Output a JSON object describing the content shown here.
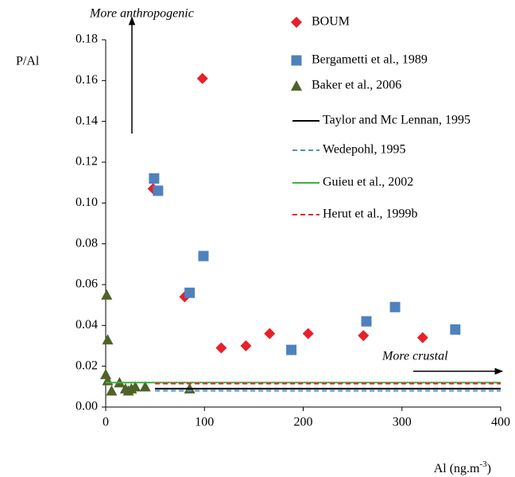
{
  "chart_data": {
    "type": "scatter",
    "y_label": "P/Al",
    "x_label": "Al (ng.m",
    "x_label_sup": "-3",
    "x_label_end": ")",
    "annotations": [
      "More anthropogenic",
      "More crustal"
    ],
    "xlim": [
      0,
      400
    ],
    "xticks": [
      0,
      100,
      200,
      300,
      400
    ],
    "ylim": [
      0,
      0.18
    ],
    "yticks": [
      {
        "value": 0,
        "label": "0.00"
      },
      {
        "value": 0.02,
        "label": "0.02"
      },
      {
        "value": 0.04,
        "label": "0.04"
      },
      {
        "value": 0.06,
        "label": "0.06"
      },
      {
        "value": 0.08,
        "label": "0.08"
      },
      {
        "value": 0.1,
        "label": "0.10"
      },
      {
        "value": 0.12,
        "label": "0.12"
      },
      {
        "value": 0.14,
        "label": "0.14"
      },
      {
        "value": 0.16,
        "label": "0.16"
      },
      {
        "value": 0.18,
        "label": "0.18"
      }
    ],
    "grid": false,
    "series": [
      {
        "name": "BOUM",
        "color": "#e8202a",
        "marker": "diamond",
        "x": [
          48,
          80,
          98,
          117,
          142,
          166,
          205,
          261,
          321
        ],
        "values": [
          0.107,
          0.054,
          0.161,
          0.029,
          0.03,
          0.036,
          0.036,
          0.035,
          0.034
        ]
      },
      {
        "name": "Bergametti et al., 1989",
        "color": "#4f81bd",
        "marker": "square",
        "x": [
          49,
          53,
          85,
          99,
          188,
          264,
          293,
          354
        ],
        "values": [
          0.112,
          0.106,
          0.056,
          0.074,
          0.028,
          0.042,
          0.049,
          0.038
        ]
      },
      {
        "name": "Baker et al., 2006",
        "color": "#4f6228",
        "marker": "triangle",
        "x": [
          1,
          2,
          0,
          2,
          6,
          14,
          20,
          23,
          26,
          30,
          40,
          85
        ],
        "values": [
          0.055,
          0.033,
          0.016,
          0.013,
          0.008,
          0.012,
          0.009,
          0.008,
          0.009,
          0.01,
          0.01,
          0.009
        ]
      },
      {
        "name": "Taylor and Mc Lennan, 1995",
        "color": "#000000",
        "line": "solid",
        "x": [
          50,
          400
        ],
        "values": [
          0.009,
          0.009
        ]
      },
      {
        "name": "Wedepohl, 1995",
        "color": "#4a8fd0",
        "line": "dashed",
        "x": [
          50,
          400
        ],
        "values": [
          0.008,
          0.008
        ]
      },
      {
        "name": "Guieu et al., 2002",
        "color": "#3cb043",
        "line": "solid",
        "x": [
          0,
          400
        ],
        "values": [
          0.012,
          0.012
        ]
      },
      {
        "name": "Herut et al., 1999b",
        "color": "#e8202a",
        "line": "dashed",
        "x": [
          50,
          400
        ],
        "values": [
          0.0115,
          0.0115
        ]
      }
    ]
  }
}
